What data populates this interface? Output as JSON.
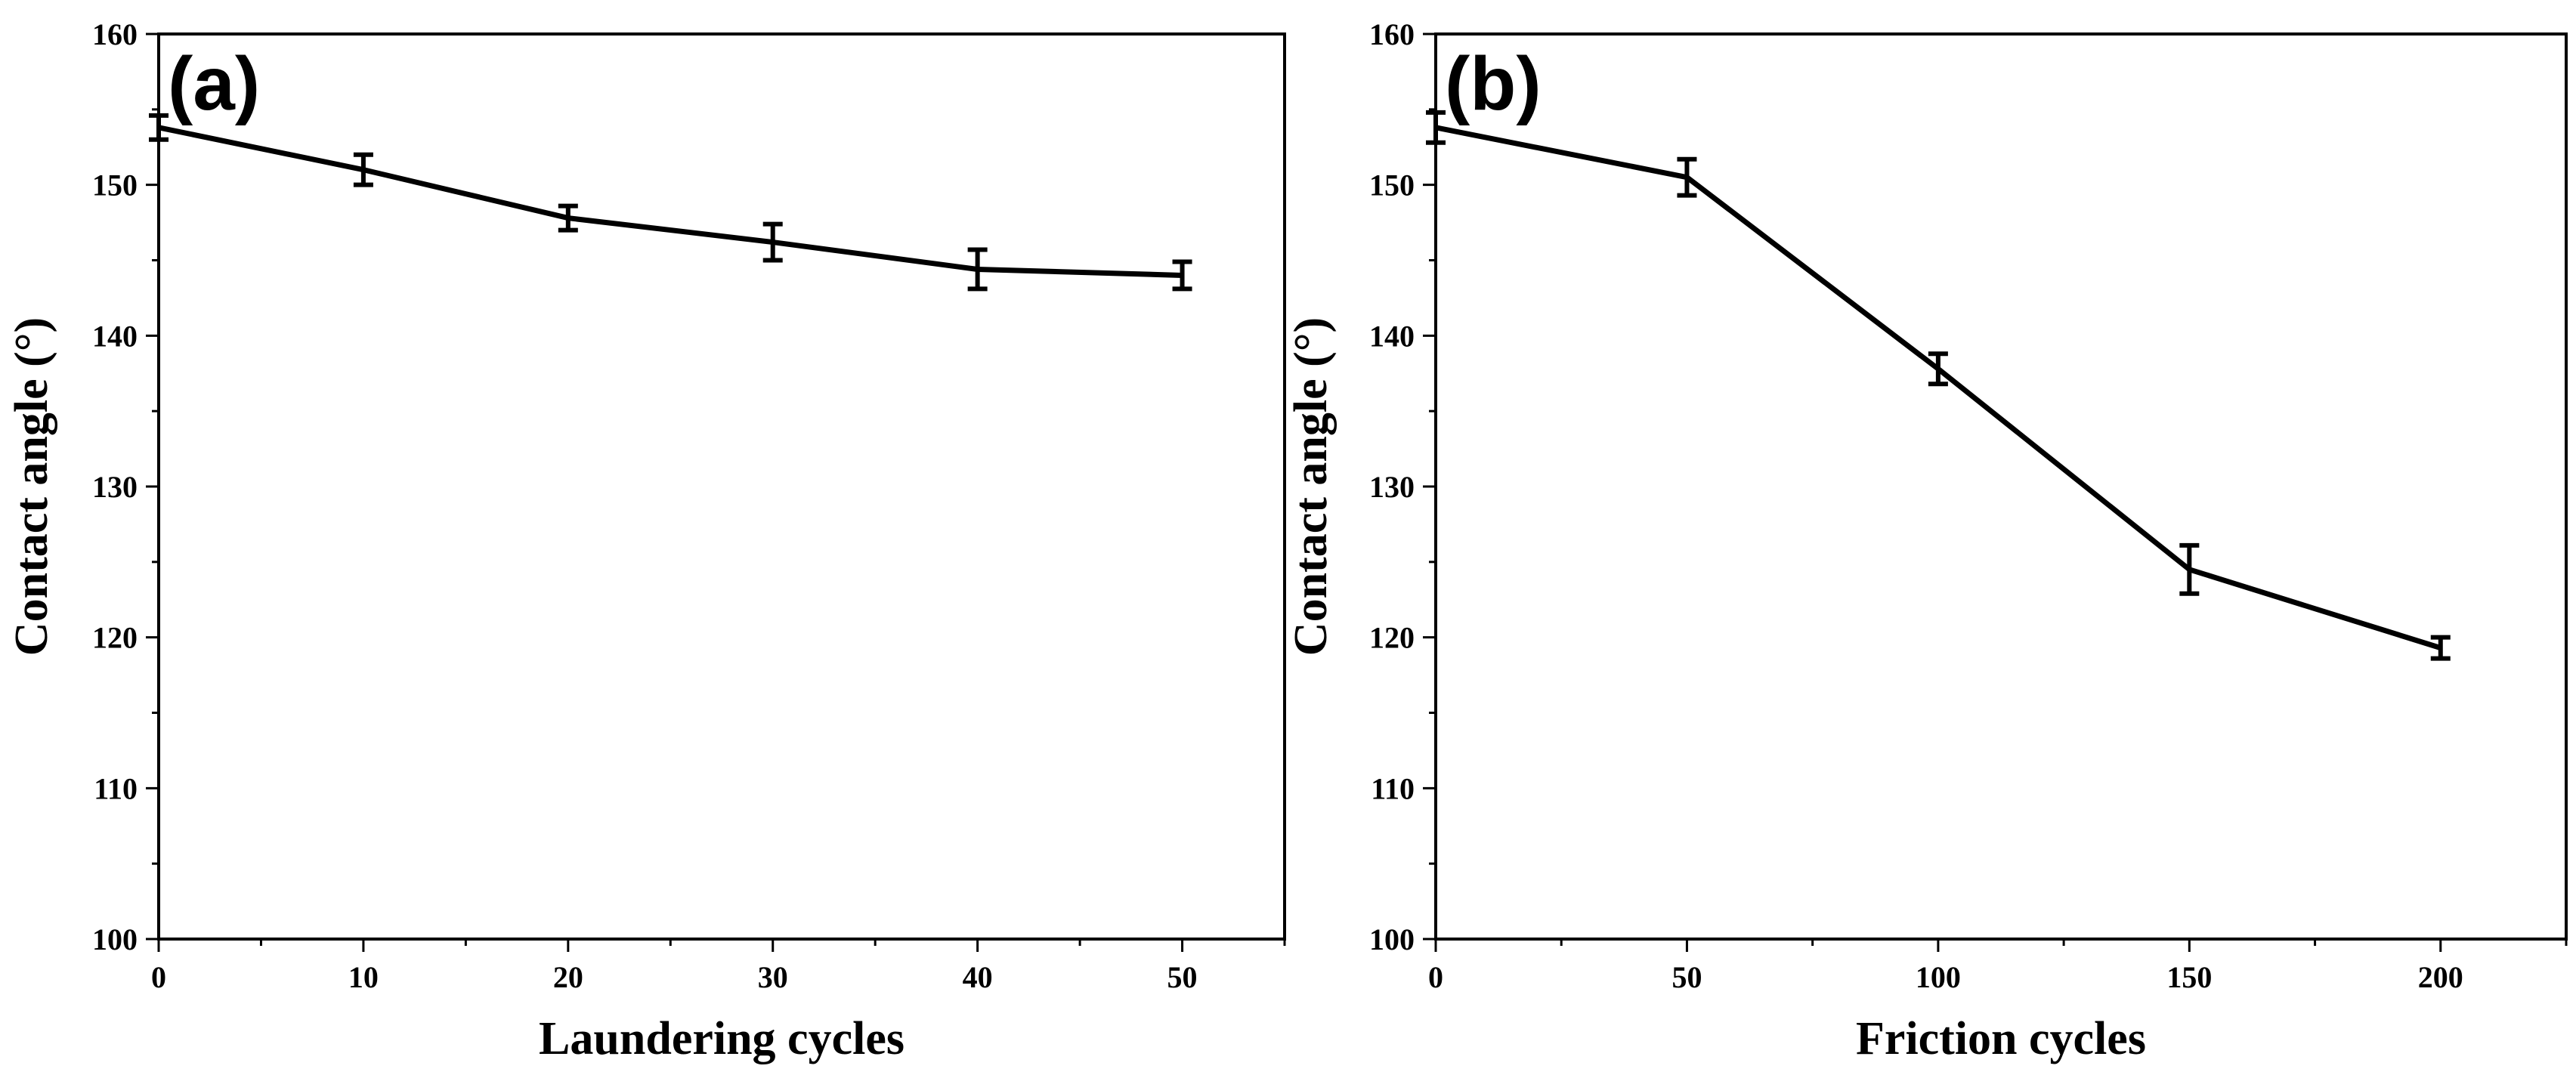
{
  "chart_data": [
    {
      "type": "line",
      "panel_label": "(a)",
      "title": "",
      "xlabel": "Laundering cycles",
      "ylabel": "Contact angle (°)",
      "xlim": [
        0,
        55
      ],
      "ylim": [
        100,
        160
      ],
      "xticks": [
        0,
        10,
        20,
        30,
        40,
        50
      ],
      "yticks": [
        100,
        110,
        120,
        130,
        140,
        150,
        160
      ],
      "x_minor_step": 5,
      "y_minor_step": 5,
      "grid": false,
      "line_color": "#000000",
      "series": [
        {
          "name": "Contact angle",
          "x": [
            0,
            10,
            20,
            30,
            40,
            50
          ],
          "values": [
            153.8,
            151.0,
            147.8,
            146.2,
            144.4,
            144.0
          ],
          "errors": [
            0.8,
            1.0,
            0.8,
            1.2,
            1.3,
            0.9
          ]
        }
      ]
    },
    {
      "type": "line",
      "panel_label": "(b)",
      "title": "",
      "xlabel": "Friction cycles",
      "ylabel": "Contact angle (°)",
      "xlim": [
        0,
        225
      ],
      "ylim": [
        100,
        160
      ],
      "xticks": [
        0,
        50,
        100,
        150,
        200
      ],
      "yticks": [
        100,
        110,
        120,
        130,
        140,
        150,
        160
      ],
      "x_minor_step": 25,
      "y_minor_step": 5,
      "grid": false,
      "line_color": "#000000",
      "series": [
        {
          "name": "Contact angle",
          "x": [
            0,
            50,
            100,
            150,
            200
          ],
          "values": [
            153.8,
            150.5,
            137.8,
            124.5,
            119.3
          ],
          "errors": [
            1.0,
            1.2,
            1.0,
            1.6,
            0.7
          ]
        }
      ]
    }
  ]
}
